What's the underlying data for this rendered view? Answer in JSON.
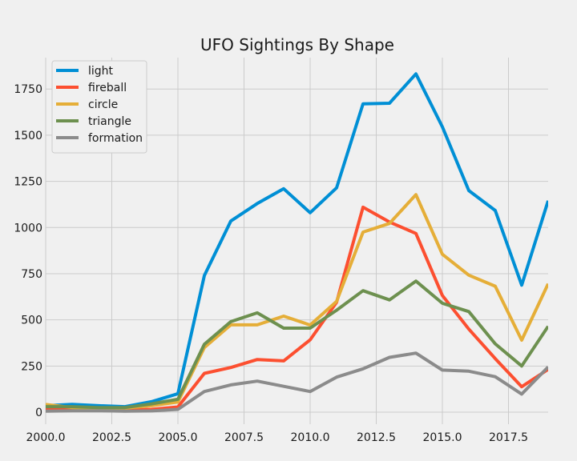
{
  "chart_data": {
    "type": "line",
    "title": "UFO Sightings By Shape",
    "xlabel": "",
    "ylabel": "",
    "xlim": [
      2000,
      2019
    ],
    "ylim": [
      -65,
      1920
    ],
    "x_ticks": [
      2000.0,
      2002.5,
      2005.0,
      2007.5,
      2010.0,
      2012.5,
      2015.0,
      2017.5
    ],
    "x_tick_labels": [
      "2000.0",
      "2002.5",
      "2005.0",
      "2007.5",
      "2010.0",
      "2012.5",
      "2015.0",
      "2017.5"
    ],
    "y_ticks": [
      0,
      250,
      500,
      750,
      1000,
      1250,
      1500,
      1750
    ],
    "y_tick_labels": [
      "0",
      "250",
      "500",
      "750",
      "1000",
      "1250",
      "1500",
      "1750"
    ],
    "grid": true,
    "legend_position": "top-left",
    "x": [
      2000,
      2001,
      2002,
      2003,
      2004,
      2005,
      2006,
      2007,
      2008,
      2009,
      2010,
      2011,
      2012,
      2013,
      2014,
      2015,
      2016,
      2017,
      2018,
      2019
    ],
    "series": [
      {
        "name": "light",
        "color": "#008fd5",
        "values": [
          35,
          42,
          35,
          30,
          57,
          100,
          740,
          1035,
          1130,
          1210,
          1080,
          1215,
          1670,
          1673,
          1832,
          1545,
          1200,
          1092,
          688,
          1145
        ]
      },
      {
        "name": "fireball",
        "color": "#fc4f30",
        "values": [
          15,
          15,
          13,
          12,
          15,
          28,
          210,
          242,
          285,
          278,
          392,
          595,
          1110,
          1030,
          968,
          632,
          450,
          290,
          138,
          232
        ]
      },
      {
        "name": "circle",
        "color": "#e5ae38",
        "values": [
          42,
          25,
          20,
          22,
          35,
          55,
          350,
          473,
          473,
          520,
          472,
          600,
          975,
          1022,
          1178,
          855,
          742,
          682,
          390,
          695
        ]
      },
      {
        "name": "triangle",
        "color": "#6d904f",
        "values": [
          30,
          30,
          25,
          25,
          45,
          70,
          368,
          490,
          538,
          455,
          455,
          552,
          658,
          608,
          710,
          590,
          545,
          370,
          250,
          465
        ]
      },
      {
        "name": "formation",
        "color": "#8b8b8b",
        "values": [
          5,
          8,
          8,
          5,
          7,
          15,
          112,
          148,
          168,
          140,
          112,
          190,
          235,
          297,
          320,
          228,
          222,
          192,
          98,
          245
        ]
      }
    ]
  }
}
